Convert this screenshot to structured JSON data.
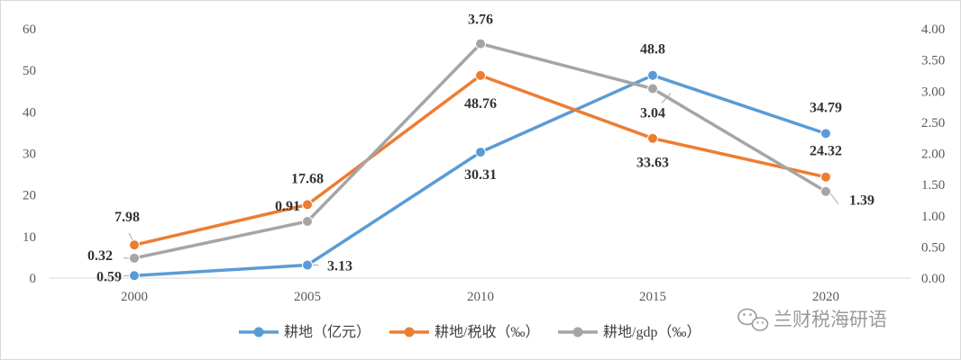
{
  "chart_data": {
    "type": "line",
    "title": "",
    "xlabel": "",
    "ylabel": "",
    "categories": [
      "2000",
      "2005",
      "2010",
      "2015",
      "2020"
    ],
    "ylim": [
      0,
      60
    ],
    "y2lim": [
      0,
      4.0
    ],
    "y_ticks": [
      "0",
      "10",
      "20",
      "30",
      "40",
      "50",
      "60"
    ],
    "y2_ticks": [
      "0.00",
      "0.50",
      "1.00",
      "1.50",
      "2.00",
      "2.50",
      "3.00",
      "3.50",
      "4.00"
    ],
    "grid": false,
    "legend_position": "bottom",
    "series": [
      {
        "name": "耕地（亿元）",
        "axis": "left",
        "color": "#5b9bd5",
        "values": [
          0.59,
          3.13,
          30.31,
          48.8,
          34.79
        ],
        "labels": [
          "0.59",
          "3.13",
          "30.31",
          "48.8",
          "34.79"
        ]
      },
      {
        "name": "耕地/税收（‰）",
        "axis": "left",
        "color": "#ed7d31",
        "values": [
          7.98,
          17.68,
          48.76,
          33.63,
          24.32
        ],
        "labels": [
          "7.98",
          "17.68",
          "48.76",
          "33.63",
          "24.32"
        ]
      },
      {
        "name": "耕地/gdp（‰）",
        "axis": "right",
        "color": "#a5a5a5",
        "values": [
          0.32,
          0.91,
          3.76,
          3.04,
          1.39
        ],
        "labels": [
          "0.32",
          "0.91",
          "3.76",
          "3.04",
          "1.39"
        ]
      }
    ]
  },
  "watermark": {
    "text": "兰财税海研语",
    "icon": "wechat-icon"
  }
}
